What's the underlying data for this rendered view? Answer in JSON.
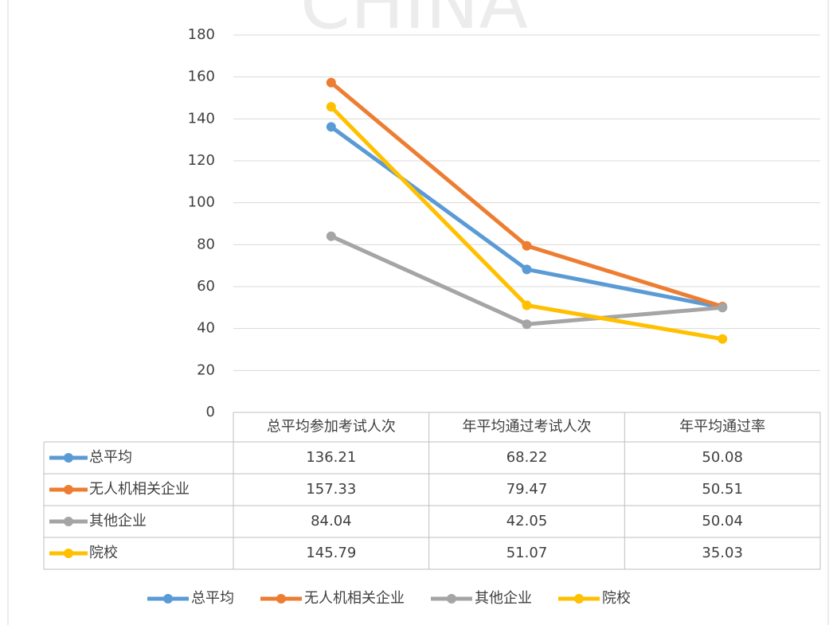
{
  "watermark": "CHINA",
  "chart_data": {
    "type": "line",
    "categories": [
      "总平均参加考试人次",
      "年平均通过考试人次",
      "年平均通过率"
    ],
    "series": [
      {
        "name": "总平均",
        "color": "#5b9bd5",
        "values": [
          136.21,
          68.22,
          50.08
        ]
      },
      {
        "name": "无人机相关企业",
        "color": "#ed7d31",
        "values": [
          157.33,
          79.47,
          50.51
        ]
      },
      {
        "name": "其他企业",
        "color": "#a5a5a5",
        "values": [
          84.04,
          42.05,
          50.04
        ]
      },
      {
        "name": "院校",
        "color": "#ffc000",
        "values": [
          145.79,
          51.07,
          35.03
        ]
      }
    ],
    "ylim": [
      0,
      180
    ],
    "yticks": [
      0,
      20,
      40,
      60,
      80,
      100,
      120,
      140,
      160,
      180
    ],
    "grid": true,
    "data_table": true,
    "legend": "bottom"
  }
}
